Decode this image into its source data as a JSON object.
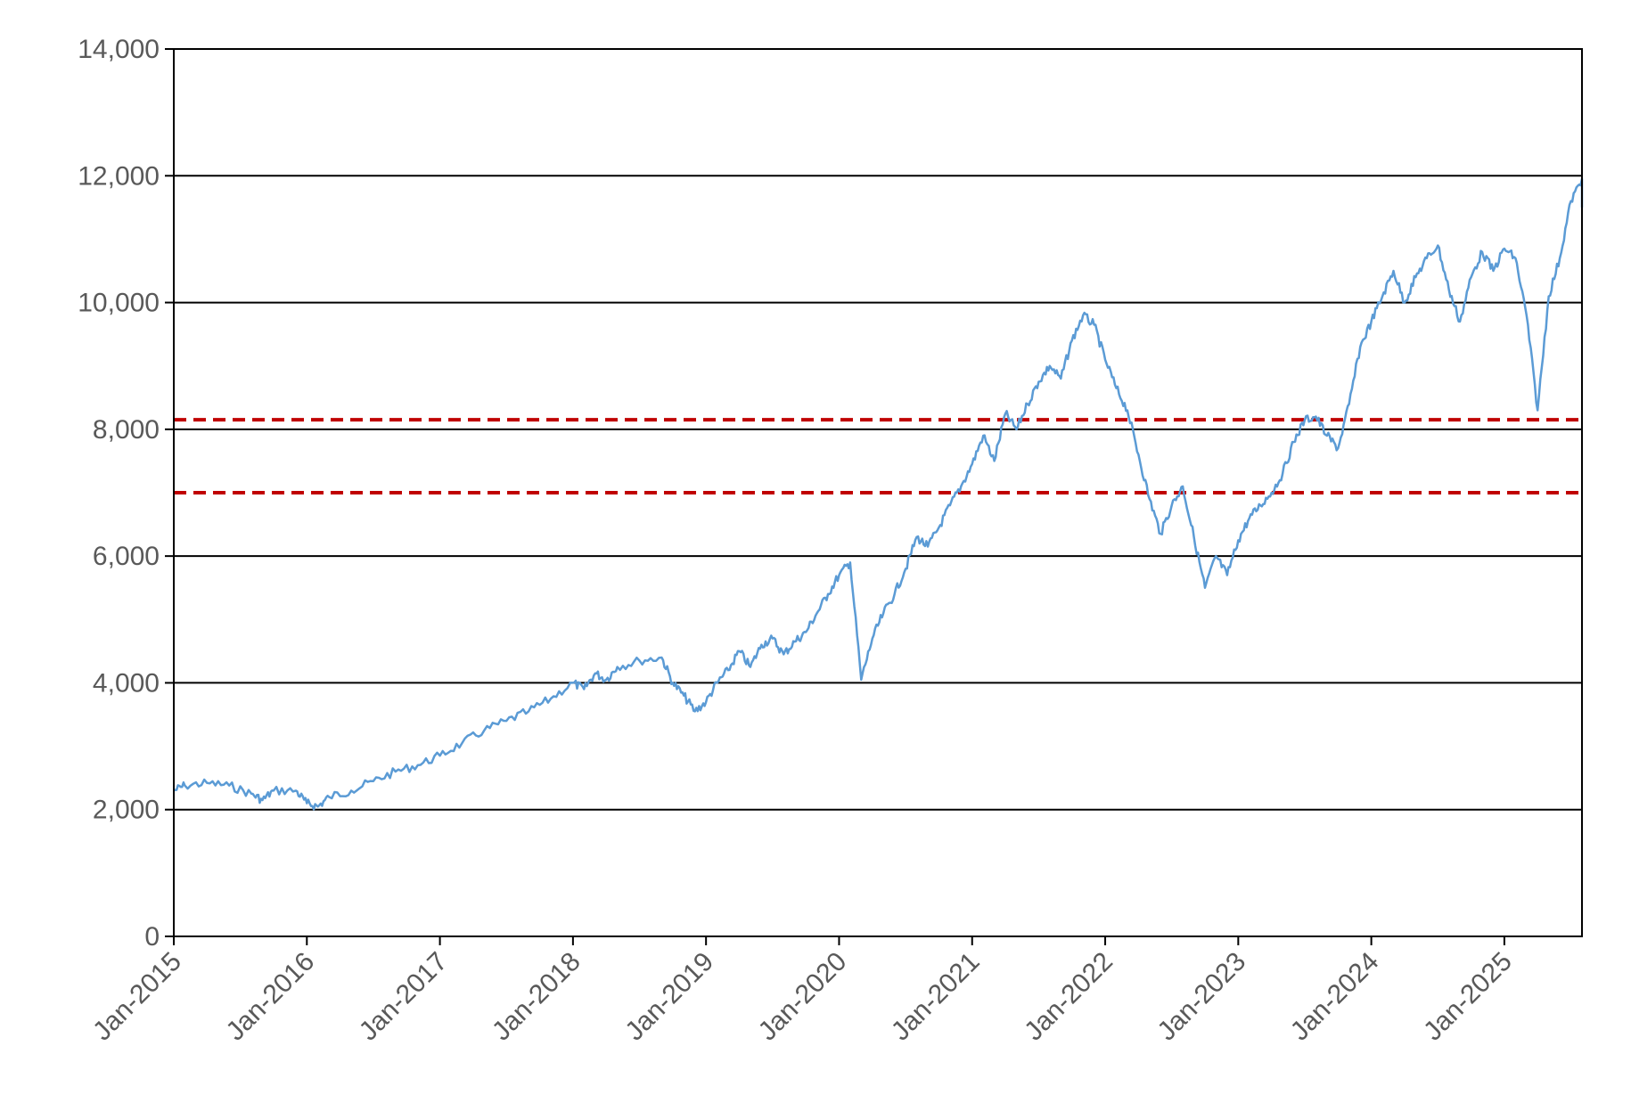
{
  "chart_data": {
    "type": "line",
    "title": "",
    "xlabel": "",
    "ylabel": "",
    "ylim": [
      0,
      14000
    ],
    "xlim": [
      "2015-01",
      "2025-08"
    ],
    "y_ticks": [
      0,
      2000,
      4000,
      6000,
      8000,
      10000,
      12000,
      14000
    ],
    "y_tick_labels": [
      "0",
      "2,000",
      "4,000",
      "6,000",
      "8,000",
      "10,000",
      "12,000",
      "14,000"
    ],
    "x_ticks": [
      "2015-01",
      "2016-01",
      "2017-01",
      "2018-01",
      "2019-01",
      "2020-01",
      "2021-01",
      "2022-01",
      "2023-01",
      "2024-01",
      "2025-01"
    ],
    "x_tick_labels": [
      "Jan-2015",
      "Jan-2016",
      "Jan-2017",
      "Jan-2018",
      "Jan-2019",
      "Jan-2020",
      "Jan-2021",
      "Jan-2022",
      "Jan-2023",
      "Jan-2024",
      "Jan-2025"
    ],
    "grid": "horizontal",
    "legend": "none",
    "series": [
      {
        "color": "#5b9bd5",
        "points": [
          [
            "2015-01",
            2300
          ],
          [
            "2015-02",
            2380
          ],
          [
            "2015-04",
            2420
          ],
          [
            "2015-06",
            2380
          ],
          [
            "2015-08",
            2250
          ],
          [
            "2015-09",
            2150
          ],
          [
            "2015-10",
            2300
          ],
          [
            "2015-12",
            2300
          ],
          [
            "2016-01",
            2100
          ],
          [
            "2016-02",
            2050
          ],
          [
            "2016-03",
            2200
          ],
          [
            "2016-05",
            2300
          ],
          [
            "2016-07",
            2450
          ],
          [
            "2016-09",
            2600
          ],
          [
            "2016-11",
            2700
          ],
          [
            "2017-01",
            2850
          ],
          [
            "2017-03",
            3050
          ],
          [
            "2017-05",
            3250
          ],
          [
            "2017-07",
            3400
          ],
          [
            "2017-09",
            3550
          ],
          [
            "2017-11",
            3750
          ],
          [
            "2018-01",
            4000
          ],
          [
            "2018-02",
            3900
          ],
          [
            "2018-03",
            4150
          ],
          [
            "2018-04",
            4050
          ],
          [
            "2018-05",
            4250
          ],
          [
            "2018-07",
            4350
          ],
          [
            "2018-09",
            4400
          ],
          [
            "2018-10",
            4000
          ],
          [
            "2018-11",
            3800
          ],
          [
            "2018-12",
            3550
          ],
          [
            "2019-01",
            3700
          ],
          [
            "2019-02",
            4000
          ],
          [
            "2019-03",
            4200
          ],
          [
            "2019-04",
            4500
          ],
          [
            "2019-05",
            4250
          ],
          [
            "2019-06",
            4600
          ],
          [
            "2019-07",
            4700
          ],
          [
            "2019-08",
            4450
          ],
          [
            "2019-09",
            4650
          ],
          [
            "2019-10",
            4800
          ],
          [
            "2019-11",
            5100
          ],
          [
            "2019-12",
            5400
          ],
          [
            "2020-01",
            5700
          ],
          [
            "2020-02",
            5900
          ],
          [
            "2020-03",
            4050
          ],
          [
            "2020-04",
            4700
          ],
          [
            "2020-05",
            5100
          ],
          [
            "2020-06",
            5400
          ],
          [
            "2020-07",
            5800
          ],
          [
            "2020-08",
            6300
          ],
          [
            "2020-09",
            6150
          ],
          [
            "2020-10",
            6450
          ],
          [
            "2020-11",
            6800
          ],
          [
            "2020-12",
            7100
          ],
          [
            "2021-01",
            7450
          ],
          [
            "2021-02",
            7900
          ],
          [
            "2021-03",
            7500
          ],
          [
            "2021-04",
            8250
          ],
          [
            "2021-05",
            8000
          ],
          [
            "2021-06",
            8400
          ],
          [
            "2021-07",
            8750
          ],
          [
            "2021-08",
            9000
          ],
          [
            "2021-09",
            8800
          ],
          [
            "2021-10",
            9400
          ],
          [
            "2021-11",
            9800
          ],
          [
            "2021-12",
            9650
          ],
          [
            "2022-01",
            9100
          ],
          [
            "2022-02",
            8650
          ],
          [
            "2022-03",
            8300
          ],
          [
            "2022-04",
            7600
          ],
          [
            "2022-05",
            6900
          ],
          [
            "2022-06",
            6350
          ],
          [
            "2022-07",
            6800
          ],
          [
            "2022-08",
            7100
          ],
          [
            "2022-09",
            6300
          ],
          [
            "2022-10",
            5500
          ],
          [
            "2022-11",
            6000
          ],
          [
            "2022-12",
            5700
          ],
          [
            "2023-01",
            6250
          ],
          [
            "2023-02",
            6600
          ],
          [
            "2023-03",
            6800
          ],
          [
            "2023-04",
            7000
          ],
          [
            "2023-05",
            7300
          ],
          [
            "2023-06",
            7800
          ],
          [
            "2023-07",
            8150
          ],
          [
            "2023-08",
            8200
          ],
          [
            "2023-09",
            7900
          ],
          [
            "2023-10",
            7700
          ],
          [
            "2023-11",
            8400
          ],
          [
            "2023-12",
            9300
          ],
          [
            "2024-01",
            9700
          ],
          [
            "2024-02",
            10100
          ],
          [
            "2024-03",
            10500
          ],
          [
            "2024-04",
            10000
          ],
          [
            "2024-05",
            10400
          ],
          [
            "2024-06",
            10700
          ],
          [
            "2024-07",
            10900
          ],
          [
            "2024-08",
            10200
          ],
          [
            "2024-09",
            9700
          ],
          [
            "2024-10",
            10400
          ],
          [
            "2024-11",
            10800
          ],
          [
            "2024-12",
            10500
          ],
          [
            "2025-01",
            10850
          ],
          [
            "2025-02",
            10700
          ],
          [
            "2025-03",
            9800
          ],
          [
            "2025-04",
            8300
          ],
          [
            "2025-05",
            10100
          ],
          [
            "2025-06",
            10700
          ],
          [
            "2025-07",
            11600
          ],
          [
            "2025-08",
            11950
          ],
          [
            "2025-08",
            11500
          ]
        ]
      }
    ],
    "reference_lines": [
      {
        "y": 8150,
        "color": "#c00000",
        "style": "dashed"
      },
      {
        "y": 7000,
        "color": "#c00000",
        "style": "dashed"
      }
    ]
  }
}
